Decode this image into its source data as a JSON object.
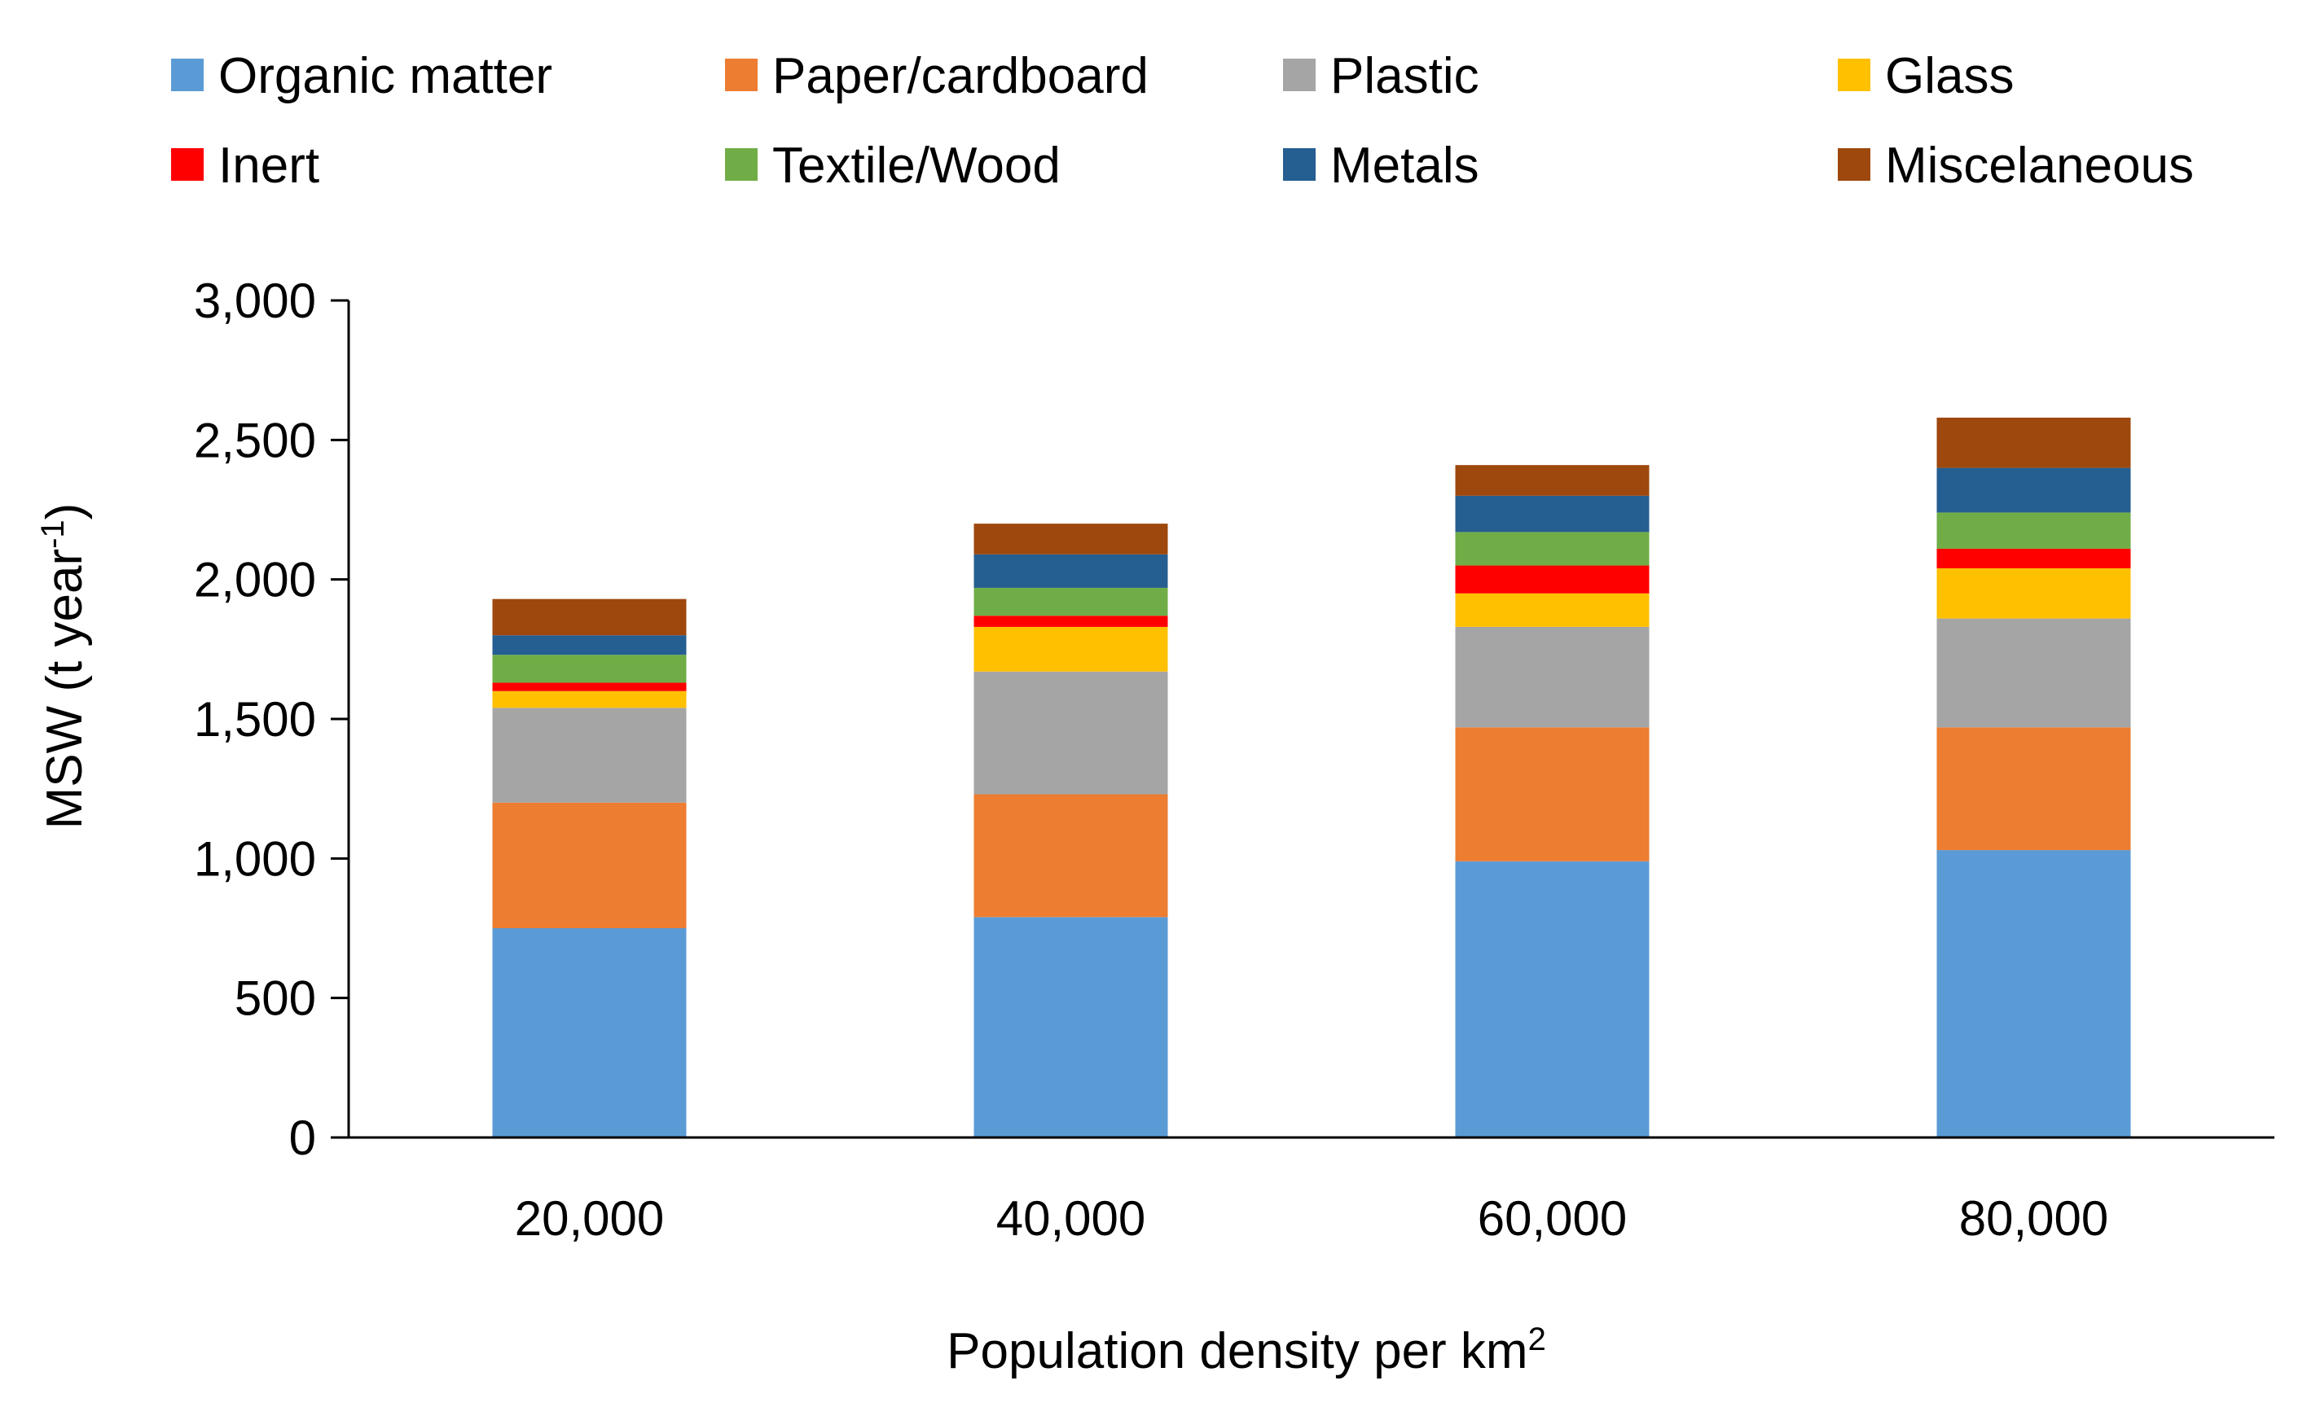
{
  "chart_data": {
    "type": "bar",
    "stacked": true,
    "title": "",
    "xlabel": "Population density per km",
    "xlabel_superscript": "2",
    "ylabel": "MSW (t year",
    "ylabel_superscript": "-1",
    "ylabel_suffix": ")",
    "ylim": [
      0,
      3000
    ],
    "yticks": [
      0,
      500,
      1000,
      1500,
      2000,
      2500,
      3000
    ],
    "ytick_labels": [
      "0",
      "500",
      "1,000",
      "1,500",
      "2,000",
      "2,500",
      "3,000"
    ],
    "categories": [
      "20,000",
      "40,000",
      "60,000",
      "80,000"
    ],
    "legend_position": "top",
    "grid": false,
    "series": [
      {
        "name": "Organic matter",
        "color": "#5B9BD5",
        "values": [
          750,
          790,
          990,
          1030
        ]
      },
      {
        "name": "Paper/cardboard",
        "color": "#ED7D31",
        "values": [
          450,
          440,
          480,
          440
        ]
      },
      {
        "name": "Plastic",
        "color": "#A5A5A5",
        "values": [
          340,
          440,
          360,
          390
        ]
      },
      {
        "name": "Glass",
        "color": "#FFC000",
        "values": [
          60,
          160,
          120,
          180
        ]
      },
      {
        "name": "Inert",
        "color": "#FF0000",
        "values": [
          30,
          40,
          100,
          70
        ]
      },
      {
        "name": "Textile/Wood",
        "color": "#70AD47",
        "values": [
          100,
          100,
          120,
          130
        ]
      },
      {
        "name": "Metals",
        "color": "#255E91",
        "values": [
          70,
          120,
          130,
          160
        ]
      },
      {
        "name": "Miscelaneous",
        "color": "#9E480E",
        "values": [
          130,
          110,
          110,
          180
        ]
      }
    ]
  }
}
